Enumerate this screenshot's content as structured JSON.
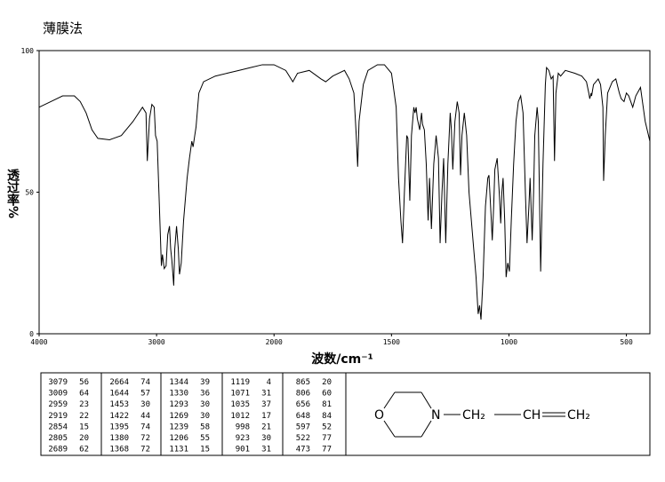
{
  "chart_data": {
    "type": "line",
    "title": "薄膜法",
    "xlabel": "波数/cm⁻¹",
    "ylabel": "透过率%",
    "xlim": [
      4000,
      400
    ],
    "xscale_break": 2000,
    "xticks": [
      4000,
      3000,
      2000,
      1500,
      1000,
      500
    ],
    "ylim": [
      0,
      100
    ],
    "yticks": [
      0,
      50,
      100
    ],
    "color": "#000000",
    "x": [
      4000,
      3900,
      3800,
      3700,
      3650,
      3600,
      3550,
      3500,
      3400,
      3300,
      3200,
      3120,
      3090,
      3079,
      3060,
      3040,
      3020,
      3009,
      2995,
      2980,
      2959,
      2950,
      2935,
      2919,
      2905,
      2890,
      2880,
      2870,
      2854,
      2845,
      2830,
      2815,
      2805,
      2790,
      2770,
      2740,
      2720,
      2700,
      2689,
      2675,
      2664,
      2640,
      2600,
      2500,
      2400,
      2300,
      2200,
      2100,
      2000,
      1950,
      1920,
      1900,
      1850,
      1800,
      1780,
      1750,
      1700,
      1680,
      1660,
      1650,
      1644,
      1638,
      1620,
      1600,
      1560,
      1530,
      1500,
      1480,
      1470,
      1460,
      1453,
      1445,
      1435,
      1430,
      1422,
      1415,
      1405,
      1400,
      1395,
      1390,
      1380,
      1372,
      1368,
      1360,
      1352,
      1344,
      1338,
      1330,
      1320,
      1310,
      1300,
      1293,
      1285,
      1278,
      1269,
      1260,
      1250,
      1245,
      1239,
      1230,
      1220,
      1212,
      1206,
      1200,
      1190,
      1180,
      1170,
      1150,
      1140,
      1131,
      1125,
      1119,
      1110,
      1100,
      1090,
      1085,
      1075,
      1071,
      1065,
      1060,
      1050,
      1040,
      1035,
      1030,
      1025,
      1018,
      1012,
      1005,
      998,
      990,
      980,
      970,
      960,
      950,
      940,
      930,
      923,
      915,
      910,
      901,
      895,
      890,
      880,
      875,
      865,
      855,
      845,
      840,
      830,
      820,
      812,
      806,
      800,
      790,
      780,
      760,
      720,
      690,
      670,
      660,
      656,
      650,
      648,
      640,
      620,
      610,
      600,
      597,
      590,
      580,
      560,
      545,
      530,
      522,
      510,
      500,
      490,
      473,
      460,
      440,
      420,
      400
    ],
    "values": [
      80,
      82,
      84,
      84,
      82,
      78,
      72,
      69,
      68.5,
      70,
      75,
      80,
      78,
      61,
      76,
      81,
      80,
      70,
      68,
      50,
      24,
      28,
      23,
      24,
      35,
      38,
      30,
      26,
      17,
      30,
      38,
      30,
      21,
      25,
      40,
      55,
      62,
      68,
      66,
      70,
      73,
      85,
      89,
      91,
      92,
      93,
      94,
      95,
      95,
      93,
      89,
      92,
      93,
      90,
      89,
      91,
      93,
      90,
      85,
      70,
      59,
      75,
      88,
      93,
      95,
      95,
      92,
      80,
      55,
      40,
      32,
      50,
      70,
      69,
      47,
      70,
      80,
      78,
      80,
      76,
      72,
      78,
      74,
      72,
      60,
      40,
      55,
      37,
      60,
      70,
      62,
      32,
      50,
      62,
      32,
      60,
      78,
      72,
      58,
      75,
      82,
      78,
      56,
      70,
      78,
      70,
      50,
      30,
      20,
      7,
      10,
      5,
      20,
      45,
      55,
      56,
      40,
      33,
      45,
      58,
      62,
      48,
      39,
      50,
      55,
      40,
      20,
      25,
      22,
      40,
      60,
      75,
      82,
      84,
      78,
      50,
      32,
      45,
      55,
      33,
      50,
      70,
      80,
      75,
      22,
      60,
      88,
      94,
      93,
      90,
      91,
      61,
      85,
      92,
      91,
      93,
      92,
      91,
      89,
      85,
      83,
      85,
      84,
      88,
      90,
      88,
      80,
      54,
      70,
      85,
      89,
      90,
      85,
      83,
      82,
      85,
      84,
      80,
      84,
      87,
      75,
      68
    ]
  },
  "table": {
    "columns": [
      [
        [
          3079,
          56
        ],
        [
          3009,
          64
        ],
        [
          2959,
          23
        ],
        [
          2919,
          22
        ],
        [
          2854,
          15
        ],
        [
          2805,
          20
        ],
        [
          2689,
          62
        ]
      ],
      [
        [
          2664,
          74
        ],
        [
          1644,
          57
        ],
        [
          1453,
          30
        ],
        [
          1422,
          44
        ],
        [
          1395,
          74
        ],
        [
          1380,
          72
        ],
        [
          1368,
          72
        ]
      ],
      [
        [
          1344,
          39
        ],
        [
          1330,
          36
        ],
        [
          1293,
          30
        ],
        [
          1269,
          30
        ],
        [
          1239,
          58
        ],
        [
          1206,
          55
        ],
        [
          1131,
          15
        ]
      ],
      [
        [
          1119,
          4
        ],
        [
          1071,
          31
        ],
        [
          1035,
          37
        ],
        [
          1012,
          17
        ],
        [
          998,
          21
        ],
        [
          923,
          30
        ],
        [
          901,
          31
        ]
      ],
      [
        [
          865,
          20
        ],
        [
          806,
          60
        ],
        [
          656,
          81
        ],
        [
          648,
          84
        ],
        [
          597,
          52
        ],
        [
          522,
          77
        ],
        [
          473,
          77
        ]
      ]
    ]
  },
  "structure": {
    "atoms": [
      "O",
      "N",
      "CH₂",
      "CH",
      "CH₂"
    ]
  }
}
